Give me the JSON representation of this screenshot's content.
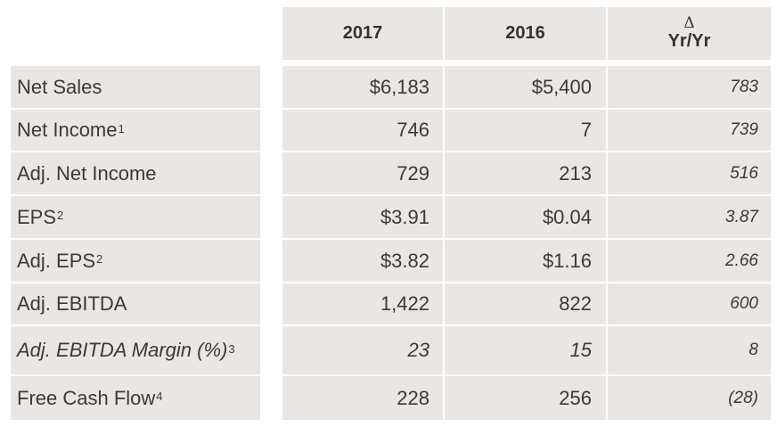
{
  "header": {
    "col1": "2017",
    "col2": "2016",
    "col3_symbol": "Δ",
    "col3_label": "Yr/Yr"
  },
  "rows": [
    {
      "label": "Net Sales",
      "sup": "",
      "v2017": "$6,183",
      "v2016": "$5,400",
      "delta": "783"
    },
    {
      "label": "Net Income",
      "sup": "1",
      "v2017": "746",
      "v2016": "7",
      "delta": "739"
    },
    {
      "label": "Adj. Net Income",
      "sup": "",
      "v2017": "729",
      "v2016": "213",
      "delta": "516"
    },
    {
      "label": "EPS",
      "sup": "2",
      "v2017": "$3.91",
      "v2016": "$0.04",
      "delta": "3.87"
    },
    {
      "label": "Adj. EPS",
      "sup": "2",
      "v2017": "$3.82",
      "v2016": "$1.16",
      "delta": "2.66"
    },
    {
      "label": "Adj. EBITDA",
      "sup": "",
      "v2017": "1,422",
      "v2016": "822",
      "delta": "600"
    },
    {
      "label": "Adj. EBITDA Margin (%)",
      "sup": " 3",
      "v2017": "23",
      "v2016": "15",
      "delta": "8"
    },
    {
      "label": "Free Cash Flow",
      "sup": "4",
      "v2017": "228",
      "v2016": "256",
      "delta": "(28)"
    }
  ]
}
